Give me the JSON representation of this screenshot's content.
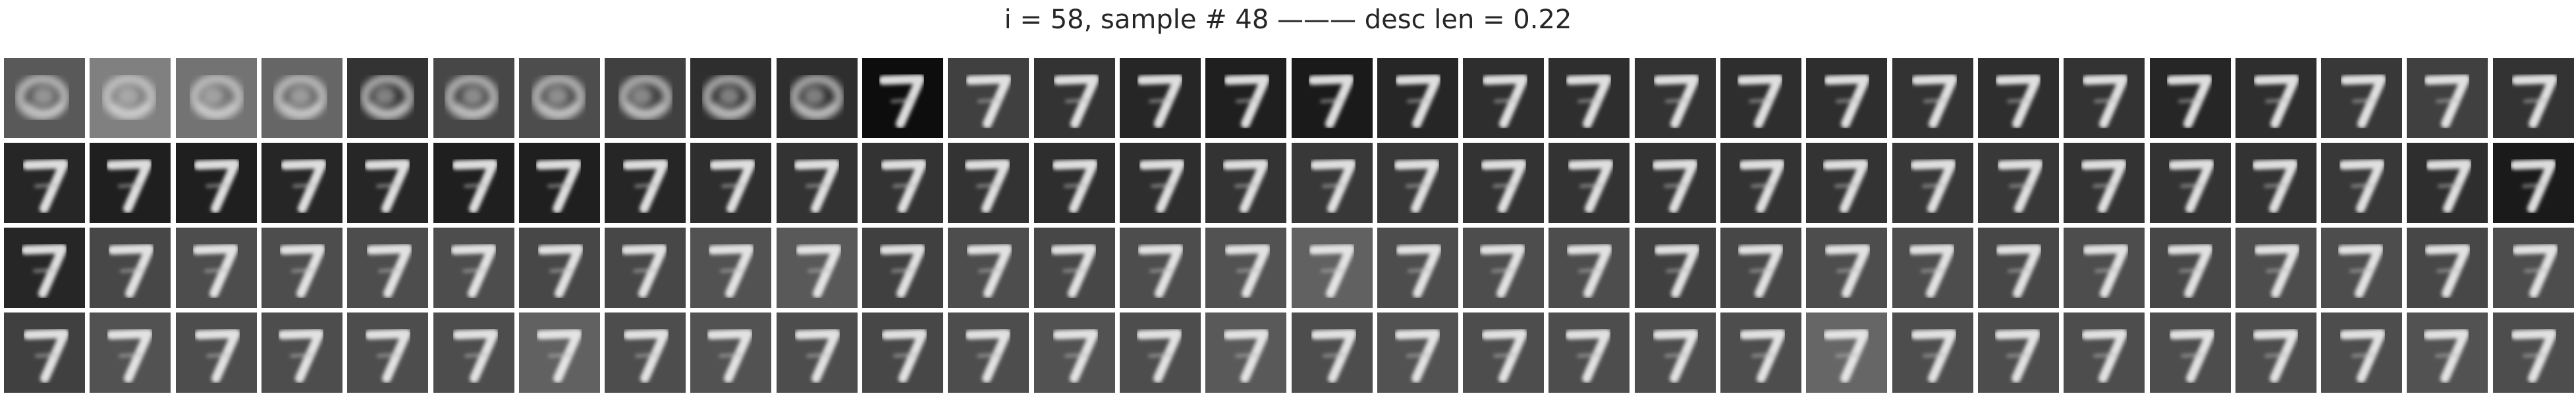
{
  "title": "i = 58, sample # 48 ——— desc len = 0.22",
  "figure": {
    "rows": 4,
    "cols": 30,
    "tile_content": "grayscale reconstructions of a handwritten digit 7 (early tiles in the first row are blurry blobs)",
    "rows_data": [
      {
        "name": "row-1",
        "backgrounds": [
          0.35,
          0.5,
          0.45,
          0.4,
          0.2,
          0.28,
          0.3,
          0.25,
          0.18,
          0.18,
          0.05,
          0.25,
          0.2,
          0.15,
          0.12,
          0.1,
          0.15,
          0.18,
          0.18,
          0.2,
          0.18,
          0.18,
          0.2,
          0.18,
          0.2,
          0.15,
          0.18,
          0.22,
          0.25,
          0.2
        ]
      },
      {
        "name": "row-2",
        "backgrounds": [
          0.15,
          0.12,
          0.12,
          0.15,
          0.15,
          0.12,
          0.12,
          0.15,
          0.18,
          0.2,
          0.2,
          0.2,
          0.18,
          0.18,
          0.2,
          0.22,
          0.22,
          0.2,
          0.2,
          0.2,
          0.2,
          0.2,
          0.22,
          0.22,
          0.2,
          0.2,
          0.2,
          0.22,
          0.18,
          0.1
        ]
      },
      {
        "name": "row-3",
        "backgrounds": [
          0.15,
          0.28,
          0.3,
          0.3,
          0.3,
          0.3,
          0.28,
          0.28,
          0.32,
          0.35,
          0.25,
          0.3,
          0.28,
          0.3,
          0.32,
          0.38,
          0.3,
          0.3,
          0.3,
          0.25,
          0.28,
          0.3,
          0.3,
          0.28,
          0.3,
          0.28,
          0.3,
          0.3,
          0.28,
          0.3
        ]
      },
      {
        "name": "row-4",
        "backgrounds": [
          0.25,
          0.32,
          0.3,
          0.3,
          0.3,
          0.3,
          0.38,
          0.3,
          0.32,
          0.3,
          0.28,
          0.3,
          0.32,
          0.3,
          0.35,
          0.3,
          0.32,
          0.3,
          0.3,
          0.3,
          0.3,
          0.4,
          0.3,
          0.3,
          0.3,
          0.3,
          0.3,
          0.3,
          0.32,
          0.3
        ]
      }
    ]
  },
  "colors": {
    "background": "#ffffff",
    "title_text": "#262626"
  }
}
